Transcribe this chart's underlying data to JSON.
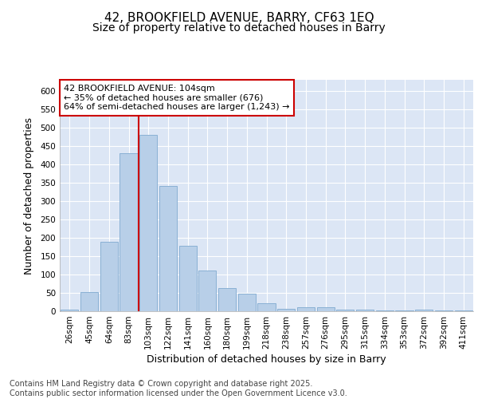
{
  "title_line1": "42, BROOKFIELD AVENUE, BARRY, CF63 1EQ",
  "title_line2": "Size of property relative to detached houses in Barry",
  "xlabel": "Distribution of detached houses by size in Barry",
  "ylabel": "Number of detached properties",
  "categories": [
    "26sqm",
    "45sqm",
    "64sqm",
    "83sqm",
    "103sqm",
    "122sqm",
    "141sqm",
    "160sqm",
    "180sqm",
    "199sqm",
    "218sqm",
    "238sqm",
    "257sqm",
    "276sqm",
    "295sqm",
    "315sqm",
    "334sqm",
    "353sqm",
    "372sqm",
    "392sqm",
    "411sqm"
  ],
  "values": [
    5,
    52,
    190,
    430,
    480,
    340,
    178,
    110,
    62,
    47,
    21,
    7,
    10,
    10,
    5,
    5,
    3,
    2,
    5,
    2,
    2
  ],
  "bar_color": "#b8cfe8",
  "bar_edge_color": "#8ab0d4",
  "vline_index": 4,
  "vline_color": "#cc0000",
  "annotation_text": "42 BROOKFIELD AVENUE: 104sqm\n← 35% of detached houses are smaller (676)\n64% of semi-detached houses are larger (1,243) →",
  "annotation_box_color": "#ffffff",
  "annotation_box_edge": "#cc0000",
  "ylim": [
    0,
    630
  ],
  "yticks": [
    0,
    50,
    100,
    150,
    200,
    250,
    300,
    350,
    400,
    450,
    500,
    550,
    600
  ],
  "fig_bg_color": "#ffffff",
  "plot_bg": "#dce6f5",
  "grid_color": "#ffffff",
  "footer": "Contains HM Land Registry data © Crown copyright and database right 2025.\nContains public sector information licensed under the Open Government Licence v3.0.",
  "title_fontsize": 11,
  "subtitle_fontsize": 10,
  "tick_fontsize": 7.5,
  "label_fontsize": 9,
  "footer_fontsize": 7,
  "annot_fontsize": 8
}
